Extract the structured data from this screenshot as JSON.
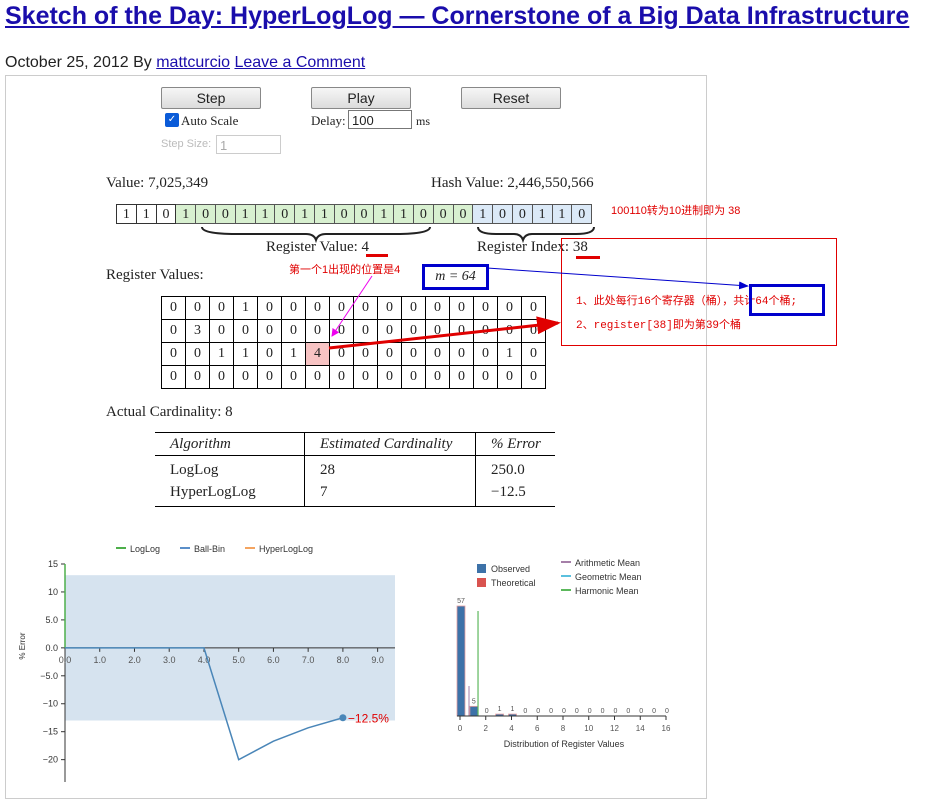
{
  "page": {
    "title": "Sketch of the Day: HyperLogLog — Cornerstone of a Big Data Infrastructure",
    "date": "October 25, 2012",
    "by": "By",
    "author": "mattcurcio",
    "comment_link": "Leave a Comment"
  },
  "controls": {
    "step": "Step",
    "play": "Play",
    "reset": "Reset",
    "auto_scale": "Auto Scale",
    "auto_scale_checked": true,
    "delay_label": "Delay:",
    "delay_value": "100",
    "delay_unit": "ms",
    "step_size_label": "Step Size:",
    "step_size_value": "1"
  },
  "sim": {
    "value_label": "Value: 7,025,349",
    "hash_label": "Hash Value: 2,446,550,566",
    "bits": [
      "1",
      "1",
      "0",
      "1",
      "0",
      "0",
      "1",
      "1",
      "0",
      "1",
      "1",
      "0",
      "0",
      "1",
      "1",
      "0",
      "0",
      "0",
      "1",
      "0",
      "0",
      "1",
      "1",
      "0"
    ],
    "register_value_label": "Register Value:",
    "register_value": "4",
    "register_index_label": "Register Index:",
    "register_index": "38",
    "register_values_label": "Register Values:",
    "m_label": "m = 64",
    "registers": [
      [
        "0",
        "0",
        "0",
        "1",
        "0",
        "0",
        "0",
        "0",
        "0",
        "0",
        "0",
        "0",
        "0",
        "0",
        "0",
        "0"
      ],
      [
        "0",
        "3",
        "0",
        "0",
        "0",
        "0",
        "0",
        "0",
        "0",
        "0",
        "0",
        "0",
        "0",
        "0",
        "0",
        "0"
      ],
      [
        "0",
        "0",
        "1",
        "1",
        "0",
        "1",
        "4",
        "0",
        "0",
        "0",
        "0",
        "0",
        "0",
        "0",
        "1",
        "0"
      ],
      [
        "0",
        "0",
        "0",
        "0",
        "0",
        "0",
        "0",
        "0",
        "0",
        "0",
        "0",
        "0",
        "0",
        "0",
        "0",
        "0"
      ]
    ],
    "actual_cardinality": "Actual Cardinality: 8",
    "estimates": {
      "headers": [
        "Algorithm",
        "Estimated Cardinality",
        "% Error"
      ],
      "rows": [
        [
          "LogLog",
          "28",
          "250.0"
        ],
        [
          "HyperLogLog",
          "7",
          "−12.5"
        ]
      ]
    }
  },
  "annotations": {
    "convert_note": "100110转为10进制即为 38",
    "first_one_note": "第一个1出现的位置是4",
    "note1": "1、此处每行16个寄存器（桶），共计64个桶;",
    "note2": "2、register[38]即为第39个桶"
  },
  "colors": {
    "link": "#1a0dab",
    "annotation": "#e00000",
    "loglog": "#4daf4a",
    "ballbin": "#5b8fc9",
    "hyperloglog": "#f4a460"
  },
  "chart_data": [
    {
      "type": "line",
      "legend": [
        "LogLog",
        "Ball-Bin",
        "HyperLogLog"
      ],
      "ylabel": "% Error",
      "xlim": [
        0,
        9.5
      ],
      "ylim": [
        -24,
        15
      ],
      "xticks": [
        "0.0",
        "1.0",
        "2.0",
        "3.0",
        "4.0",
        "5.0",
        "6.0",
        "7.0",
        "8.0",
        "9.0"
      ],
      "yticks": [
        "15",
        "10",
        "5.0",
        "0.0",
        "−5.0",
        "−10",
        "−15",
        "−20"
      ],
      "band": [
        -13,
        13
      ],
      "series": [
        {
          "name": "LogLog",
          "x": [
            0,
            0
          ],
          "y": [
            15,
            0
          ]
        },
        {
          "name": "HyperLogLog",
          "x": [
            0,
            1,
            2,
            3,
            4,
            5,
            6,
            7,
            8
          ],
          "y": [
            0,
            0,
            0,
            0,
            0,
            -20,
            -16.7,
            -14.3,
            -12.5
          ]
        }
      ],
      "end_label": "−12.5%"
    },
    {
      "type": "bar",
      "xlabel": "Distribution of Register Values",
      "legend": [
        "Observed",
        "Theoretical",
        "Arithmetic Mean",
        "Geometric Mean",
        "Harmonic Mean"
      ],
      "xticks": [
        "0",
        "2",
        "4",
        "6",
        "8",
        "10",
        "12",
        "14",
        "16"
      ],
      "categories": [
        "0",
        "1",
        "2",
        "3",
        "4",
        "5",
        "6",
        "7",
        "8",
        "9",
        "10",
        "11",
        "12",
        "13",
        "14",
        "15",
        "16"
      ],
      "observed": [
        57,
        5,
        0,
        1,
        1,
        0,
        0,
        0,
        0,
        0,
        0,
        0,
        0,
        0,
        0,
        0,
        0
      ],
      "value_labels": [
        "57",
        "5",
        "0",
        "1",
        "1",
        "0",
        "0",
        "0",
        "0",
        "0",
        "0",
        "0",
        "0",
        "0",
        "0",
        "0",
        "0"
      ]
    }
  ]
}
